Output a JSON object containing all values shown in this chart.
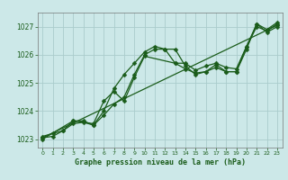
{
  "title": "Graphe pression niveau de la mer (hPa)",
  "bg_color": "#cce8e8",
  "grid_color": "#aacccc",
  "line_color": "#1a5c1a",
  "xlim": [
    -0.5,
    23.5
  ],
  "ylim": [
    1022.7,
    1027.5
  ],
  "yticks": [
    1023,
    1024,
    1025,
    1026,
    1027
  ],
  "xticks": [
    0,
    1,
    2,
    3,
    4,
    5,
    6,
    7,
    8,
    9,
    10,
    11,
    12,
    13,
    14,
    15,
    16,
    17,
    18,
    19,
    20,
    21,
    22,
    23
  ],
  "series": [
    {
      "x": [
        0,
        1,
        2,
        3,
        4,
        5,
        6,
        7,
        8,
        9,
        10,
        11,
        12,
        13,
        14,
        15,
        16,
        17,
        18,
        19,
        20,
        21,
        22,
        23
      ],
      "y": [
        1023.1,
        1023.2,
        1023.3,
        1023.55,
        1023.6,
        1023.5,
        1023.85,
        1024.25,
        1024.5,
        1025.3,
        1026.0,
        1026.2,
        1026.2,
        1026.2,
        1025.6,
        1025.3,
        1025.4,
        1025.55,
        1025.4,
        1025.4,
        1026.3,
        1027.1,
        1026.9,
        1027.15
      ]
    },
    {
      "x": [
        0,
        1,
        2,
        3,
        4,
        5,
        6,
        7,
        8,
        9,
        10,
        11,
        12,
        13,
        14,
        15,
        16,
        17,
        18,
        19,
        20,
        21,
        22,
        23
      ],
      "y": [
        1023.05,
        1023.1,
        1023.3,
        1023.65,
        1023.65,
        1023.5,
        1024.0,
        1024.8,
        1025.3,
        1025.7,
        1026.1,
        1026.3,
        1026.2,
        1025.7,
        1025.7,
        1025.45,
        1025.6,
        1025.7,
        1025.55,
        1025.5,
        1026.3,
        1027.0,
        1026.85,
        1027.1
      ]
    },
    {
      "x": [
        0,
        3,
        5,
        6,
        7,
        8,
        9,
        10,
        13,
        14,
        15,
        16,
        17,
        18,
        19,
        20,
        21,
        22,
        23
      ],
      "y": [
        1023.0,
        1023.65,
        1023.55,
        1024.35,
        1024.7,
        1024.35,
        1025.2,
        1025.95,
        1025.7,
        1025.5,
        1025.35,
        1025.4,
        1025.65,
        1025.4,
        1025.4,
        1026.2,
        1027.1,
        1026.8,
        1027.0
      ]
    },
    {
      "x": [
        0,
        23
      ],
      "y": [
        1023.05,
        1027.05
      ]
    }
  ],
  "markersize": 2.5,
  "linewidth": 0.9
}
